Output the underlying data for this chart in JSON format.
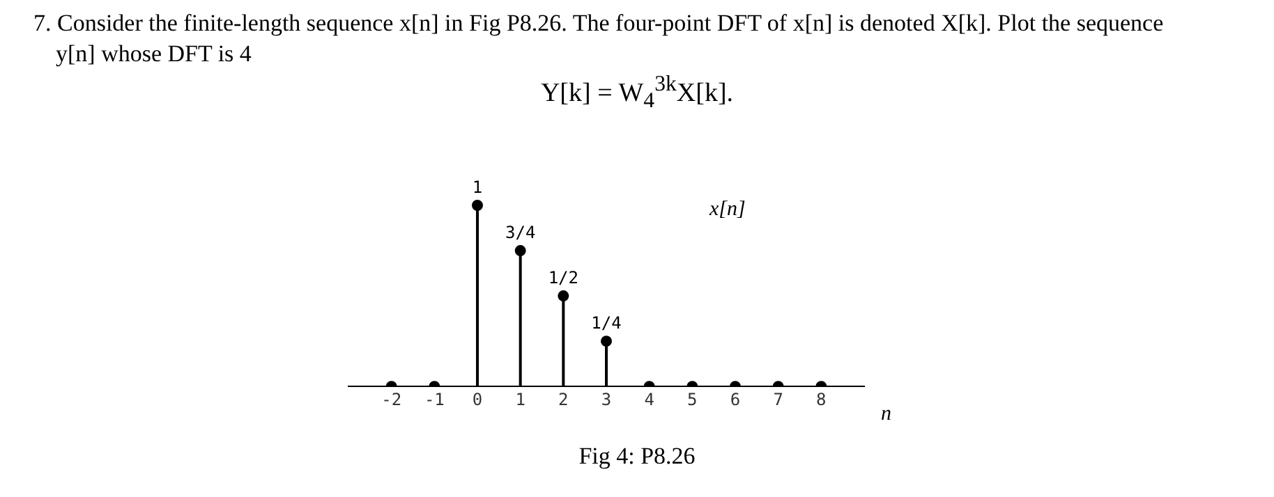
{
  "chart_data": {
    "type": "lollipop",
    "title": "7. Consider the finite-length sequence x[n] in Fig P8.26. The four-point DFT of x[n] is denoted X[k]. Plot the sequence y[n] whose DFT is 4",
    "subtitle": "Y[k] = W$_{4}$$^{3k}$X[k].",
    "xlabel": "n",
    "tick_labels": "x",
    "x": [
      -2,
      -1,
      0,
      1,
      2,
      3,
      4,
      5,
      6,
      7,
      8
    ],
    "xlim": [
      -3,
      9
    ],
    "xticks": [
      -2,
      -1,
      0,
      1,
      2,
      3,
      4,
      5,
      6,
      7,
      8
    ],
    "series": [
      {
        "name": "x[n]",
        "color": "#000000",
        "values": [
          0,
          0,
          1,
          0.75,
          0.5,
          0.25,
          0,
          0,
          0,
          0,
          0
        ],
        "value_labels": [
          null,
          null,
          "1",
          "3/4",
          "1/2",
          "1/4",
          null,
          null,
          null,
          null,
          null
        ]
      }
    ],
    "marker": "circle",
    "legend": false,
    "annotations": [
      "Fig 4: P8.26"
    ]
  }
}
